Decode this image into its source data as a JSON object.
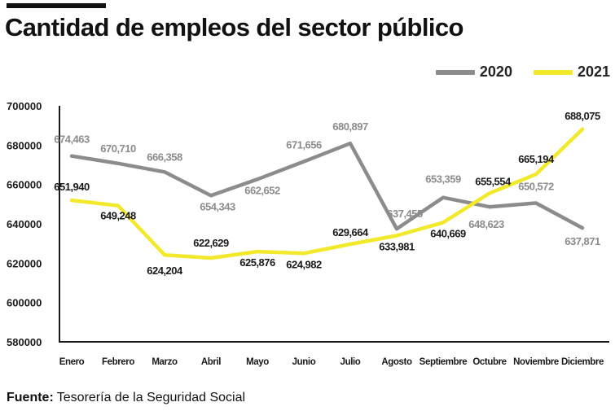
{
  "title": "Cantidad de empleos del sector público",
  "source": {
    "label": "Fuente:",
    "text": "Tesorería de la Seguridad Social"
  },
  "colors": {
    "series_2020": "#8c8c8c",
    "series_2021": "#f2e92a",
    "axis": "#1a1a1a",
    "label_2020": "#8c8c8c",
    "label_2021": "#1a1a1a"
  },
  "chart_data": {
    "type": "line",
    "title": "Cantidad de empleos del sector público",
    "xlabel": "",
    "ylabel": "",
    "ylim": [
      580000,
      700000
    ],
    "yticks": [
      580000,
      600000,
      620000,
      640000,
      660000,
      680000,
      700000
    ],
    "ytick_labels": [
      "580000",
      "600000",
      "620000",
      "640000",
      "660000",
      "680000",
      "700000"
    ],
    "grid": false,
    "legend_position": "top-right",
    "categories": [
      "Enero",
      "Febrero",
      "Marzo",
      "Abril",
      "Mayo",
      "Junio",
      "Julio",
      "Agosto",
      "Septiembre",
      "Octubre",
      "Noviembre",
      "Diciembre"
    ],
    "series": [
      {
        "name": "2020",
        "values": [
          674463,
          670710,
          666358,
          654343,
          662652,
          671656,
          680897,
          637455,
          653359,
          648623,
          650572,
          637871
        ],
        "labels": [
          "674,463",
          "670,710",
          "666,358",
          "654,343",
          "662,652",
          "671,656",
          "680,897",
          "637,455",
          "653,359",
          "648,623",
          "650,572",
          "637,871"
        ]
      },
      {
        "name": "2021",
        "values": [
          651940,
          649248,
          624204,
          622629,
          625876,
          624982,
          629664,
          633981,
          640669,
          655554,
          665194,
          688075
        ],
        "labels": [
          "651,940",
          "649,248",
          "624,204",
          "622,629",
          "625,876",
          "624,982",
          "629,664",
          "633,981",
          "640,669",
          "655,554",
          "665,194",
          "688,075"
        ]
      }
    ]
  }
}
